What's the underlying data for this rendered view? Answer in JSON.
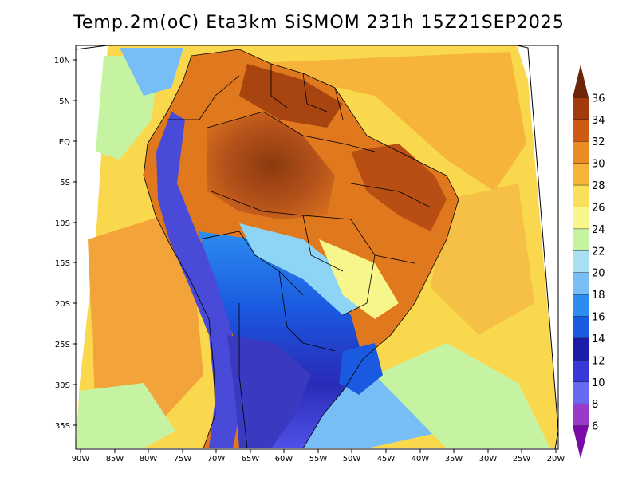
{
  "title": "Temp.2m(oC) Eta3km SiSMOM 231h 15Z21SEP2025",
  "lat_ticks": [
    "10N",
    "5N",
    "EQ",
    "5S",
    "10S",
    "15S",
    "20S",
    "25S",
    "30S",
    "35S"
  ],
  "lon_ticks": [
    "90W",
    "85W",
    "80W",
    "75W",
    "70W",
    "65W",
    "60W",
    "55W",
    "50W",
    "45W",
    "40W",
    "35W",
    "30W",
    "25W",
    "20W"
  ],
  "colorbar": {
    "labels": [
      "6",
      "8",
      "10",
      "12",
      "14",
      "16",
      "18",
      "20",
      "22",
      "24",
      "26",
      "28",
      "30",
      "32",
      "34",
      "36"
    ],
    "colors": [
      "#7a0aa8",
      "#9a3ac8",
      "#6a6af0",
      "#3838d8",
      "#1c1ca8",
      "#1a5ae0",
      "#2c8cf0",
      "#78bef6",
      "#a8e0f4",
      "#c6f3a2",
      "#f6f68a",
      "#fae05a",
      "#f6b43a",
      "#ec8a24",
      "#cf5a12",
      "#a43a0c",
      "#6e2608"
    ]
  }
}
